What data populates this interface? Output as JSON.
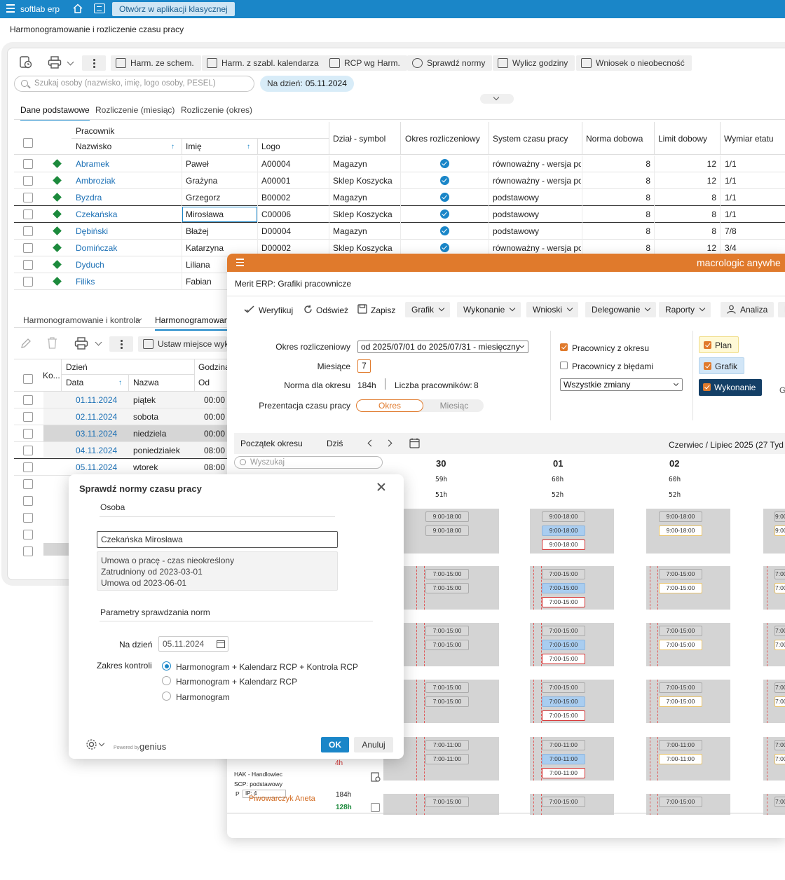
{
  "topbar": {
    "brand": "softlab erp",
    "open_classic": "Otwórz w aplikacji klasycznej"
  },
  "page_title": "Harmonogramowanie i rozliczenie czasu pracy",
  "toolbar": {
    "harm_schem": "Harm. ze schem.",
    "harm_szabl": "Harm. z szabl. kalendarza",
    "rcp": "RCP wg Harm.",
    "sprawdz": "Sprawdź normy",
    "wylicz": "Wylicz godziny",
    "wniosek": "Wniosek o nieobecność"
  },
  "search": {
    "placeholder": "Szukaj osoby (nazwisko, imię, logo osoby, PESEL)"
  },
  "date_chip": {
    "label": "Na dzień:",
    "value": "05.11.2024"
  },
  "tabs": [
    "Dane podstawowe",
    "Rozliczenie (miesiąc)",
    "Rozliczenie (okres)"
  ],
  "grid1": {
    "group_header": "Pracownik",
    "columns": [
      "Nazwisko",
      "Imię",
      "Logo",
      "Dział - symbol",
      "Okres rozliczeniowy",
      "System czasu pracy",
      "Norma dobowa",
      "Limit dobowy",
      "Wymiar etatu"
    ],
    "rows": [
      {
        "nazwisko": "Abramek",
        "imie": "Paweł",
        "logo": "A00004",
        "dzial": "Magazyn",
        "system": "równoważny - wersja pods",
        "norma": "8",
        "limit": "12",
        "etat": "1/1"
      },
      {
        "nazwisko": "Ambroziak",
        "imie": "Grażyna",
        "logo": "A00001",
        "dzial": "Sklep Koszycka",
        "system": "równoważny - wersja pods",
        "norma": "8",
        "limit": "12",
        "etat": "1/1"
      },
      {
        "nazwisko": "Byzdra",
        "imie": "Grzegorz",
        "logo": "B00002",
        "dzial": "Magazyn",
        "system": "podstawowy",
        "norma": "8",
        "limit": "8",
        "etat": "1/1"
      },
      {
        "nazwisko": "Czekańska",
        "imie": "Mirosława",
        "logo": "C00006",
        "dzial": "Sklep Koszycka",
        "system": "podstawowy",
        "norma": "8",
        "limit": "8",
        "etat": "1/1"
      },
      {
        "nazwisko": "Dębiński",
        "imie": "Błażej",
        "logo": "D00004",
        "dzial": "Magazyn",
        "system": "podstawowy",
        "norma": "8",
        "limit": "8",
        "etat": "7/8"
      },
      {
        "nazwisko": "Domińczak",
        "imie": "Katarzyna",
        "logo": "D00002",
        "dzial": "Sklep Koszycka",
        "system": "równoważny - wersja pods",
        "norma": "8",
        "limit": "12",
        "etat": "3/4"
      },
      {
        "nazwisko": "Dyduch",
        "imie": "Liliana",
        "logo": "",
        "dzial": "",
        "system": "",
        "norma": "",
        "limit": "",
        "etat": ""
      },
      {
        "nazwisko": "Filiks",
        "imie": "Fabian",
        "logo": "",
        "dzial": "",
        "system": "",
        "norma": "",
        "limit": "",
        "etat": ""
      }
    ]
  },
  "tabs2": [
    "Harmonogramowanie i kontrola",
    "Harmonogramowani"
  ],
  "toolbar2": {
    "ustaw": "Ustaw miejsce wyko"
  },
  "grid2": {
    "columns": [
      "Ko...",
      "Dzień",
      "Data",
      "Nazwa",
      "Godzina",
      "Od"
    ],
    "rows": [
      {
        "data": "01.11.2024",
        "nazwa": "piątek",
        "od": "00:00"
      },
      {
        "data": "02.11.2024",
        "nazwa": "sobota",
        "od": "00:00"
      },
      {
        "data": "03.11.2024",
        "nazwa": "niedziela",
        "od": "00:00"
      },
      {
        "data": "04.11.2024",
        "nazwa": "poniedziałek",
        "od": "08:00"
      },
      {
        "data": "05.11.2024",
        "nazwa": "wtorek",
        "od": "08:00"
      }
    ]
  },
  "merit": {
    "brand": "macrologic anywhe",
    "title": "Merit ERP: Grafiki pracownicze",
    "tools": {
      "weryfikuj": "Weryfikuj",
      "odswiez": "Odśwież",
      "zapisz": "Zapisz"
    },
    "menus": [
      "Grafik",
      "Wykonanie",
      "Wnioski",
      "Delegowanie",
      "Raporty"
    ],
    "analiza": "Analiza",
    "last_menu": "L",
    "form": {
      "okres_label": "Okres rozliczeniowy",
      "okres_value": "od 2025/07/01 do 2025/07/31 - miesięczny",
      "miesiace_label": "Miesiące",
      "miesiace_value": "7",
      "norma_label": "Norma dla okresu",
      "norma_value": "184h",
      "liczba_label": "Liczba pracowników:",
      "liczba_value": "8",
      "prezentacja_label": "Prezentacja czasu pracy",
      "toggle_on": "Okres",
      "toggle_off": "Miesiąc",
      "pracownicy_okres": "Pracownicy z okresu",
      "pracownicy_bledy": "Pracownicy z błędami",
      "zmiany": "Wszystkie zmiany",
      "plan": "Plan",
      "grafik": "Grafik",
      "wykonanie": "Wykonanie",
      "extra": "G"
    },
    "cal": {
      "poczatek": "Początek okresu",
      "dzis": "Dziś",
      "range": "Czerwiec / Lipiec 2025 (27 Tyd",
      "search": "Wyszukaj",
      "days": [
        {
          "num": "30",
          "a": "59h",
          "b": "51h"
        },
        {
          "num": "01",
          "a": "60h",
          "b": "52h"
        },
        {
          "num": "02",
          "a": "60h",
          "b": "52h"
        }
      ],
      "shift_9_18": "9:00-18:00",
      "shift_7_15": "7:00-15:00",
      "shift_7_11": "7:00-11:00",
      "hak": "HAK - Handlowiec",
      "scp": "SCP: podstawowy",
      "p": "P",
      "ip": "IP: 4",
      "h4": "4h",
      "employee": "Piwowarczyk Aneta",
      "e_a": "184h",
      "e_b": "128h"
    }
  },
  "dialog": {
    "title": "Sprawdź normy czasu pracy",
    "osoba": "Osoba",
    "person": "Czekańska Mirosława",
    "info": [
      "Umowa o pracę - czas nieokreślony",
      "Zatrudniony od 2023-03-01",
      "Umowa od 2023-06-01"
    ],
    "params": "Parametry sprawdzania norm",
    "na_dzien": "Na dzień",
    "date": "05.11.2024",
    "zakres": "Zakres kontroli",
    "options": [
      "Harmonogram + Kalendarz RCP + Kontrola RCP",
      "Harmonogram + Kalendarz RCP",
      "Harmonogram"
    ],
    "powered": "Powered by",
    "genius": "genius",
    "ok": "OK",
    "cancel": "Anuluj"
  }
}
